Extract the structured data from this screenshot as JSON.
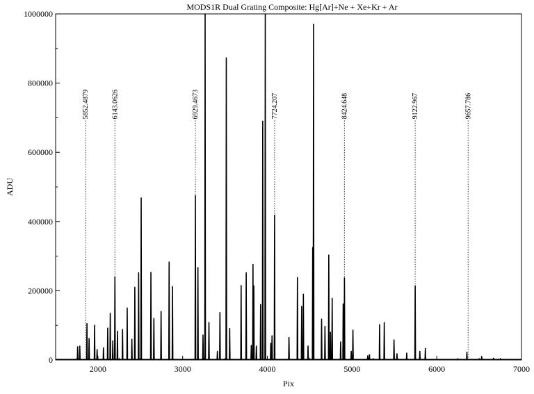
{
  "chart_data": {
    "type": "line",
    "title": "MODS1R Dual Grating Composite: Hg[Ar]+Ne + Xe+Kr + Ar",
    "xlabel": "Pix",
    "ylabel": "ADU",
    "xlim": [
      1500,
      7000
    ],
    "ylim": [
      0,
      1000000
    ],
    "x_ticks": [
      2000,
      3000,
      4000,
      5000,
      6000,
      7000
    ],
    "y_ticks": [
      0,
      200000,
      400000,
      600000,
      800000,
      1000000
    ],
    "grid": false,
    "series": [
      {
        "color": "#000000",
        "peaks": [
          [
            1760,
            38000
          ],
          [
            1785,
            40000
          ],
          [
            1870,
            105000
          ],
          [
            1895,
            62000
          ],
          [
            1960,
            100000
          ],
          [
            1990,
            30000
          ],
          [
            2065,
            35000
          ],
          [
            2115,
            92000
          ],
          [
            2145,
            135000
          ],
          [
            2175,
            55000
          ],
          [
            2200,
            240000
          ],
          [
            2230,
            83000
          ],
          [
            2290,
            88000
          ],
          [
            2345,
            150000
          ],
          [
            2400,
            60000
          ],
          [
            2435,
            210000
          ],
          [
            2480,
            252000
          ],
          [
            2510,
            468000
          ],
          [
            2625,
            253000
          ],
          [
            2660,
            120000
          ],
          [
            2745,
            140000
          ],
          [
            2840,
            283000
          ],
          [
            2880,
            212000
          ],
          [
            3150,
            475000
          ],
          [
            3180,
            267000
          ],
          [
            3240,
            72000
          ],
          [
            3265,
            1000000
          ],
          [
            3310,
            108000
          ],
          [
            3410,
            25000
          ],
          [
            3440,
            137000
          ],
          [
            3515,
            873000
          ],
          [
            3555,
            91000
          ],
          [
            3690,
            215000
          ],
          [
            3750,
            252000
          ],
          [
            3810,
            42000
          ],
          [
            3830,
            276000
          ],
          [
            3840,
            214000
          ],
          [
            3870,
            40000
          ],
          [
            3920,
            160000
          ],
          [
            3945,
            690000
          ],
          [
            3975,
            1000000
          ],
          [
            4040,
            48000
          ],
          [
            4055,
            70000
          ],
          [
            4085,
            418000
          ],
          [
            4255,
            65000
          ],
          [
            4355,
            238000
          ],
          [
            4405,
            155000
          ],
          [
            4425,
            190000
          ],
          [
            4480,
            40000
          ],
          [
            4535,
            325000
          ],
          [
            4545,
            970000
          ],
          [
            4640,
            118000
          ],
          [
            4680,
            97000
          ],
          [
            4725,
            303000
          ],
          [
            4745,
            80000
          ],
          [
            4765,
            178000
          ],
          [
            4865,
            52000
          ],
          [
            4895,
            162000
          ],
          [
            4910,
            237000
          ],
          [
            4990,
            25000
          ],
          [
            5010,
            86000
          ],
          [
            5185,
            12000
          ],
          [
            5205,
            15000
          ],
          [
            5325,
            102000
          ],
          [
            5380,
            108000
          ],
          [
            5495,
            58000
          ],
          [
            5530,
            18000
          ],
          [
            5645,
            20000
          ],
          [
            5745,
            214000
          ],
          [
            5800,
            25000
          ],
          [
            5865,
            33000
          ],
          [
            6355,
            22000
          ],
          [
            6530,
            10000
          ],
          [
            6670,
            5000
          ]
        ]
      }
    ],
    "annotations": [
      {
        "label": "5852.4879",
        "x": 1855,
        "y_top": 700000
      },
      {
        "label": "6143.0626",
        "x": 2200,
        "y_top": 700000
      },
      {
        "label": "6929.4673",
        "x": 3150,
        "y_top": 700000
      },
      {
        "label": "7724.207",
        "x": 4085,
        "y_top": 700000
      },
      {
        "label": "8424.648",
        "x": 4910,
        "y_top": 700000
      },
      {
        "label": "9122.967",
        "x": 5745,
        "y_top": 700000
      },
      {
        "label": "9657.786",
        "x": 6370,
        "y_top": 700000
      }
    ]
  }
}
